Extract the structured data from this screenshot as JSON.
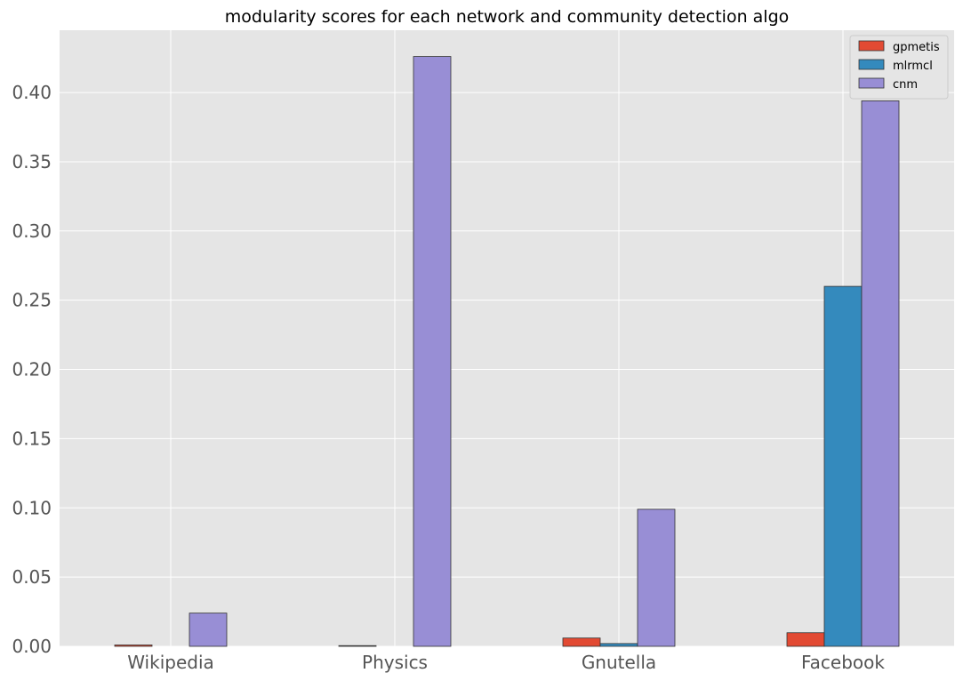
{
  "chart_data": {
    "type": "bar",
    "title": "modularity scores for each network and community detection algo",
    "xlabel": "",
    "ylabel": "",
    "categories": [
      "Wikipedia",
      "Physics",
      "Gnutella",
      "Facebook"
    ],
    "series": [
      {
        "name": "gpmetis",
        "color": "#E24A33",
        "values": [
          0.001,
          0.0005,
          0.006,
          0.0098
        ]
      },
      {
        "name": "mlrmcl",
        "color": "#348ABD",
        "values": [
          0.0,
          0.0,
          0.002,
          0.26
        ]
      },
      {
        "name": "cnm",
        "color": "#988ED5",
        "values": [
          0.024,
          0.426,
          0.099,
          0.394
        ]
      }
    ],
    "ylim": [
      0,
      0.445
    ],
    "yticks": [
      0.0,
      0.05,
      0.1,
      0.15,
      0.2,
      0.25,
      0.3,
      0.35,
      0.4
    ],
    "ytick_labels": [
      "0.00",
      "0.05",
      "0.10",
      "0.15",
      "0.20",
      "0.25",
      "0.30",
      "0.35",
      "0.40"
    ],
    "grid": true,
    "legend_position": "top-right",
    "background": "#E5E5E5"
  }
}
